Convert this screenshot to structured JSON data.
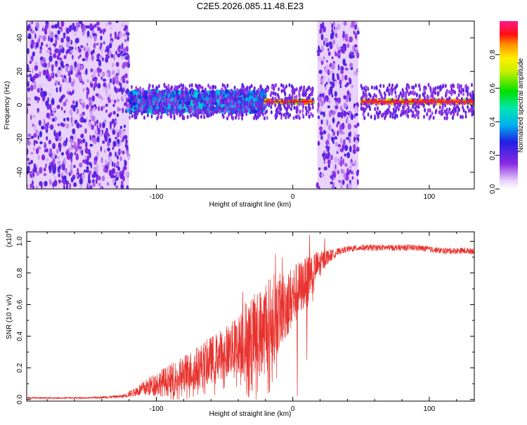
{
  "title": "C2E5.2026.085.11.48.E23",
  "chart_data": [
    {
      "type": "heatmap",
      "name": "spectrogram",
      "xlabel": "Height of straight line (km)",
      "ylabel": "Frequency (Hz)",
      "xlim": [
        -195,
        133
      ],
      "ylim": [
        -50,
        50
      ],
      "xticks": [
        -100,
        0,
        100
      ],
      "yticks": [
        -40,
        -20,
        0,
        20,
        40
      ],
      "colorbar": {
        "label": "Normalized spectral amplitude",
        "range": [
          0,
          1
        ],
        "ticks": [
          0.0,
          0.2,
          0.4,
          0.6,
          0.8
        ],
        "colormap": "rainbow (violet-blue-cyan-green-yellow-red-magenta)"
      },
      "regions": [
        {
          "description": "broadband noise",
          "x_range": [
            -195,
            -120
          ],
          "freq_range": [
            -50,
            50
          ],
          "amplitude": 0.2
        },
        {
          "description": "signal band with noise",
          "x_range": [
            -120,
            -20
          ],
          "freq_center": 2,
          "amplitude": 0.4
        },
        {
          "description": "clean signal line",
          "x_range": [
            -20,
            15
          ],
          "freq_center": 2,
          "amplitude": 0.9
        },
        {
          "description": "noise gap",
          "x_range": [
            18,
            48
          ],
          "freq_range": [
            -50,
            50
          ],
          "amplitude": 0.2
        },
        {
          "description": "strong clean signal",
          "x_range": [
            50,
            133
          ],
          "freq_center": 2,
          "amplitude": 0.95
        }
      ]
    },
    {
      "type": "line",
      "name": "snr",
      "xlabel": "Height of straight line (km)",
      "ylabel": "SNR (10 * v/v)",
      "y_multiplier": "(x10",
      "y_multiplier_exp": "4",
      "y_multiplier_close": ")",
      "xlim": [
        -195,
        133
      ],
      "ylim": [
        -0.01,
        1.06
      ],
      "xticks": [
        -100,
        0,
        100
      ],
      "yticks": [
        0.0,
        0.2,
        0.4,
        0.6,
        0.8,
        1.0
      ],
      "color": "#e8322d",
      "series": [
        {
          "name": "SNR envelope",
          "x": [
            -195,
            -150,
            -125,
            -115,
            -100,
            -90,
            -80,
            -70,
            -60,
            -50,
            -40,
            -35,
            -30,
            -25,
            -20,
            -15,
            -10,
            -5,
            0,
            5,
            10,
            15,
            20,
            25,
            30,
            35,
            40,
            50,
            60,
            70,
            80,
            90,
            100,
            110,
            120,
            133
          ],
          "y": [
            0.01,
            0.01,
            0.02,
            0.05,
            0.1,
            0.12,
            0.16,
            0.2,
            0.25,
            0.3,
            0.35,
            0.38,
            0.4,
            0.42,
            0.45,
            0.5,
            0.55,
            0.6,
            0.65,
            0.7,
            0.75,
            0.82,
            0.86,
            0.9,
            0.92,
            0.94,
            0.95,
            0.96,
            0.96,
            0.96,
            0.96,
            0.96,
            0.95,
            0.94,
            0.94,
            0.94
          ],
          "amplitude": [
            0.005,
            0.005,
            0.01,
            0.03,
            0.08,
            0.1,
            0.12,
            0.14,
            0.15,
            0.16,
            0.18,
            0.25,
            0.25,
            0.28,
            0.3,
            0.3,
            0.25,
            0.22,
            0.2,
            0.18,
            0.15,
            0.12,
            0.08,
            0.05,
            0.03,
            0.02,
            0.02,
            0.02,
            0.02,
            0.02,
            0.02,
            0.02,
            0.02,
            0.02,
            0.02,
            0.02
          ]
        }
      ],
      "notable_points": {
        "x": [
          -37,
          -33,
          -20,
          -13,
          -8,
          3,
          10,
          12,
          20,
          23
        ],
        "y": [
          0.68,
          0.02,
          0.72,
          0.92,
          0.9,
          0.02,
          0.25,
          1.04,
          0.78,
          1.02
        ]
      }
    }
  ]
}
